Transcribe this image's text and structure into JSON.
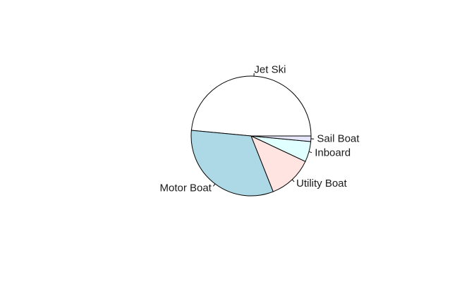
{
  "chart_data": {
    "type": "pie",
    "labels": [
      "Jet Ski",
      "Motor Boat",
      "Utility Boat",
      "Inboard",
      "Sail Boat"
    ],
    "values": [
      48.5,
      32.5,
      12.0,
      5.5,
      1.5
    ],
    "colors": [
      "#ffffff",
      "#add8e6",
      "#ffe4e1",
      "#e0ffff",
      "#e6e6fa"
    ],
    "start_angle_deg": 0,
    "direction": "counterclockwise"
  }
}
